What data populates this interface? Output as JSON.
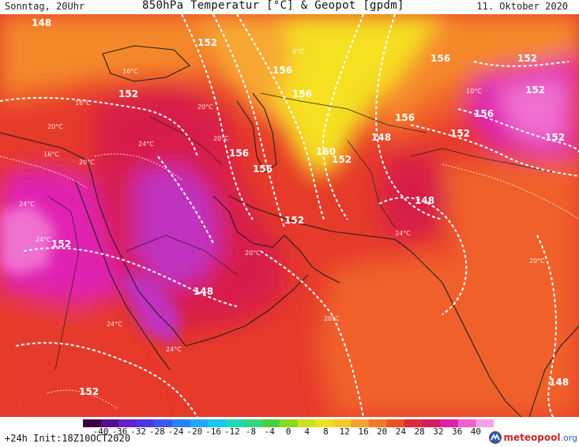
{
  "header": {
    "valid_time": "Sonntag, 20Uhr",
    "title": "850hPa Temperatur [°C] & Geopot [gpdm]",
    "date": "11. Oktober 2020"
  },
  "map": {
    "geopotential_labels": [
      "148",
      "152",
      "156",
      "160",
      "156",
      "156",
      "152",
      "156",
      "148",
      "152",
      "152",
      "148",
      "152",
      "152",
      "148",
      "152",
      "148",
      "152",
      "152",
      "152",
      "156",
      "156",
      "156"
    ],
    "temperature_labels": [
      "16°C",
      "20°C",
      "24°C",
      "24°C",
      "24°C",
      "20°C",
      "24°C",
      "20°C",
      "24°C",
      "24°C",
      "20°C",
      "20°C",
      "16°C",
      "20°C",
      "16°C",
      "20°C",
      "10°C",
      "8°C"
    ],
    "palette": {
      "magenta": "#e020b0",
      "crimson": "#d81a4a",
      "red": "#e63a2a",
      "orange_red": "#f0602a",
      "orange": "#f5882a",
      "light_orange": "#f8a830",
      "yellow": "#f5e020",
      "pink": "#f070d0",
      "purple": "#c030c0"
    }
  },
  "colorbar": {
    "ticks": [
      "-40",
      "-36",
      "-32",
      "-28",
      "-24",
      "-20",
      "-16",
      "-12",
      "-8",
      "-4",
      "0",
      "4",
      "8",
      "12",
      "16",
      "20",
      "24",
      "28",
      "32",
      "36",
      "40"
    ],
    "colors": [
      "#3c0040",
      "#5a0a8c",
      "#6a1ec8",
      "#5038e0",
      "#3a58f0",
      "#2a80f8",
      "#20a8f8",
      "#18c8e8",
      "#20d8b8",
      "#30d880",
      "#48d040",
      "#88d820",
      "#c8e020",
      "#f0e020",
      "#f8c828",
      "#f8a030",
      "#f47828",
      "#ec5028",
      "#e02838",
      "#d81a60",
      "#e020a8",
      "#f060d0",
      "#f8a0e8"
    ]
  },
  "footer": {
    "init_text": "+24h Init:18Z10OCT2020",
    "logo_brand": "meteopool",
    "logo_tld": ".org"
  }
}
